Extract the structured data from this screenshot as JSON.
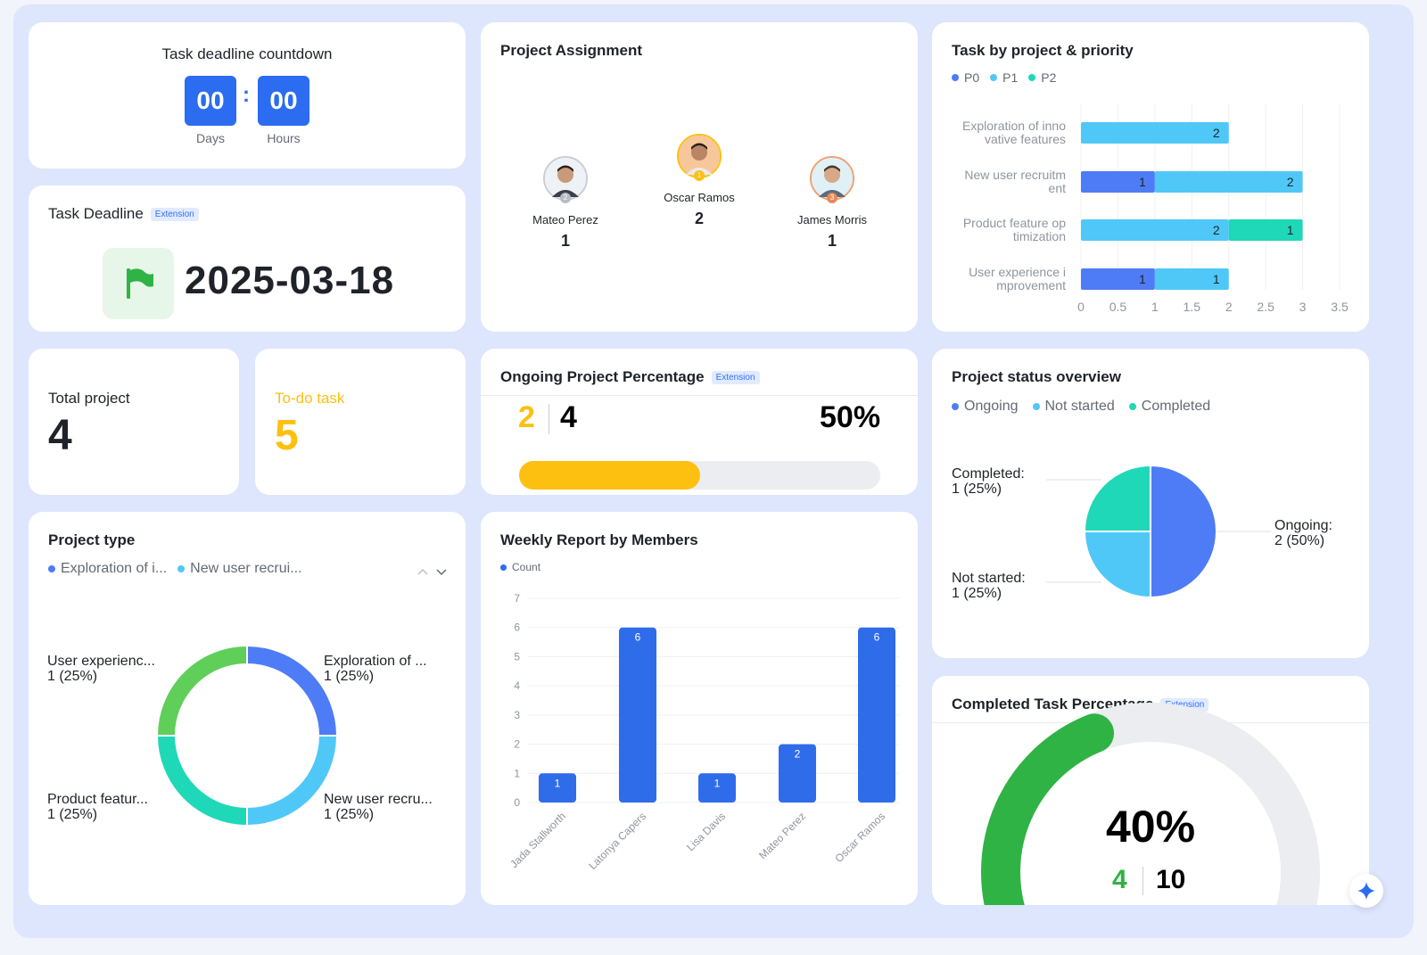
{
  "countdown": {
    "title": "Task deadline countdown",
    "days": "00",
    "hours": "00",
    "days_label": "Days",
    "hours_label": "Hours",
    "separator": ":"
  },
  "deadline": {
    "title": "Task Deadline",
    "badge": "Extension",
    "date": "2025-03-18",
    "icon": "flag-icon"
  },
  "stats": {
    "total_project_label": "Total project",
    "total_project_value": "4",
    "todo_label": "To-do task",
    "todo_value": "5"
  },
  "assignment": {
    "title": "Project Assignment",
    "people": [
      {
        "name": "Mateo Perez",
        "count": "1",
        "rank": "2"
      },
      {
        "name": "Oscar Ramos",
        "count": "2",
        "rank": "1"
      },
      {
        "name": "James Morris",
        "count": "1",
        "rank": "3"
      }
    ]
  },
  "ongoing": {
    "title": "Ongoing Project Percentage",
    "badge": "Extension",
    "ongoing_count": "2",
    "total_count": "4",
    "percent_text": "50%",
    "fraction": 0.5
  },
  "completed_task": {
    "title": "Completed Task Percentage",
    "badge": "Extension",
    "percent_text": "40%",
    "completed": "4",
    "total": "10",
    "fraction": 0.4
  },
  "colors": {
    "p0": "#4e7cf6",
    "p1": "#4fc8f8",
    "p2": "#1fd8b8",
    "bar_blue": "#2f6cea",
    "yellow": "#fdc010",
    "green": "#2fb344",
    "donut_green": "#5fcf5a"
  },
  "chart_data": [
    {
      "id": "task_by_project_priority",
      "type": "bar",
      "orientation": "horizontal",
      "stacked": true,
      "title": "Task by project & priority",
      "categories": [
        "Exploration of innovative features",
        "New user recruitment",
        "Product feature optimization",
        "User experience improvement"
      ],
      "category_label_lines": [
        [
          "Exploration of inno",
          "vative features"
        ],
        [
          "New user recruitm",
          "ent"
        ],
        [
          "Product feature op",
          "timization"
        ],
        [
          "User experience i",
          "mprovement"
        ]
      ],
      "series": [
        {
          "name": "P0",
          "values": [
            0,
            1,
            0,
            1
          ]
        },
        {
          "name": "P1",
          "values": [
            2,
            2,
            2,
            1
          ]
        },
        {
          "name": "P2",
          "values": [
            0,
            0,
            1,
            0
          ]
        }
      ],
      "xlim": [
        0,
        3.5
      ],
      "xticks": [
        "0",
        "0.5",
        "1",
        "1.5",
        "2",
        "2.5",
        "3",
        "3.5"
      ],
      "grid": true,
      "legend": "top-left"
    },
    {
      "id": "project_status_overview",
      "type": "pie",
      "title": "Project status overview",
      "legend_labels": [
        "Ongoing",
        "Not started",
        "Completed"
      ],
      "slices": [
        {
          "name": "Ongoing",
          "value": 2,
          "label": "Ongoing:",
          "detail": "2 (50%)"
        },
        {
          "name": "Not started",
          "value": 1,
          "label": "Not started:",
          "detail": "1 (25%)"
        },
        {
          "name": "Completed",
          "value": 1,
          "label": "Completed:",
          "detail": "1 (25%)"
        }
      ],
      "legend": "top-left"
    },
    {
      "id": "project_type",
      "type": "pie",
      "donut": true,
      "title": "Project type",
      "legend_labels": [
        "Exploration of i...",
        "New user recrui..."
      ],
      "slices": [
        {
          "name": "Exploration of innovative features",
          "value": 1,
          "label": "Exploration of ...",
          "detail": "1 (25%)"
        },
        {
          "name": "New user recruitment",
          "value": 1,
          "label": "New user recru...",
          "detail": "1 (25%)"
        },
        {
          "name": "Product feature optimization",
          "value": 1,
          "label": "Product featur...",
          "detail": "1 (25%)"
        },
        {
          "name": "User experience improvement",
          "value": 1,
          "label": "User experienc...",
          "detail": "1 (25%)"
        }
      ],
      "legend": "top-left"
    },
    {
      "id": "weekly_report_by_members",
      "type": "bar",
      "title": "Weekly Report by Members",
      "categories": [
        "Jada Stallworth",
        "Latonya Capers",
        "Lisa Davis",
        "Mateo Perez",
        "Oscar Ramos"
      ],
      "series": [
        {
          "name": "Count",
          "values": [
            1,
            6,
            1,
            2,
            6
          ]
        }
      ],
      "ylim": [
        0,
        7
      ],
      "yticks": [
        "0",
        "1",
        "2",
        "3",
        "4",
        "5",
        "6",
        "7"
      ],
      "grid": true,
      "legend": "top-left"
    }
  ]
}
